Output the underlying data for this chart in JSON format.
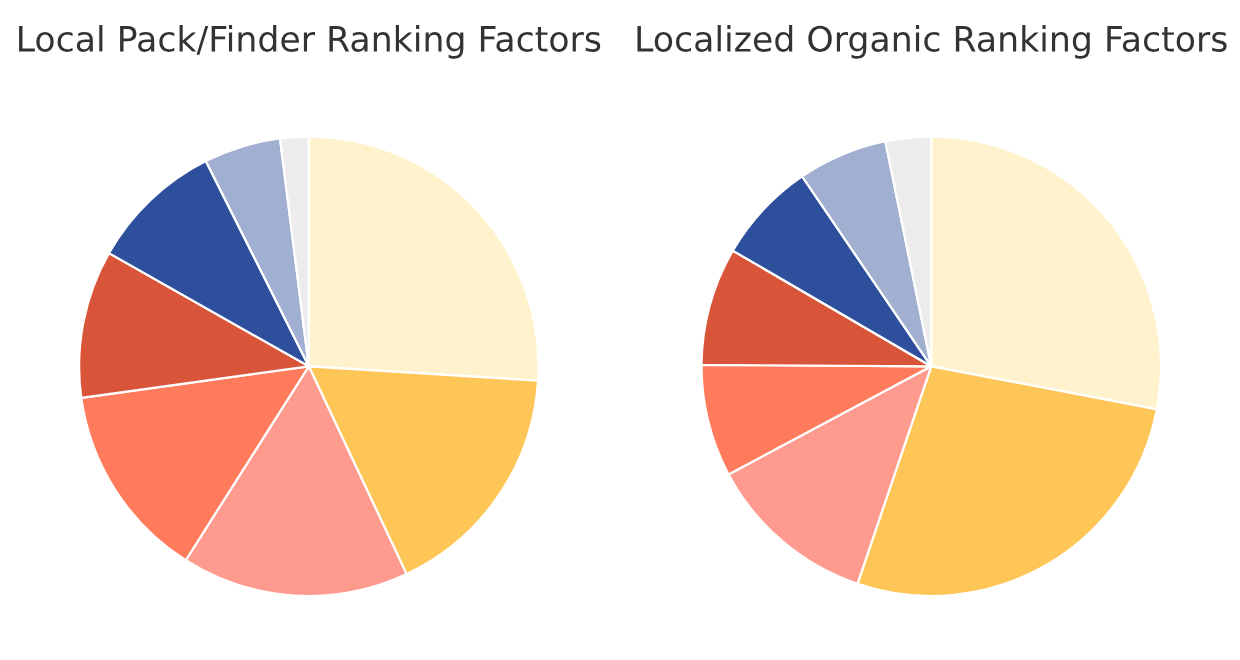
{
  "chart_data": [
    {
      "type": "pie",
      "title": "Local Pack/Finder Ranking Factors",
      "categories": [
        null,
        null,
        null,
        null,
        null,
        null,
        null,
        null
      ],
      "values": [
        26,
        17,
        16,
        13.8,
        10.4,
        9.4,
        5.4,
        2
      ],
      "colors": [
        "#fff2cc",
        "#fdc656",
        "#ff9a8f",
        "#ff7b5c",
        "#d9553a",
        "#2e4f9c",
        "#a1afd0",
        "#ececec"
      ]
    },
    {
      "type": "pie",
      "title": "Localized Organic Ranking Factors",
      "categories": [
        null,
        null,
        null,
        null,
        null,
        null,
        null,
        null
      ],
      "values": [
        28,
        27.2,
        12,
        7.9,
        8.3,
        7.1,
        6.3,
        3.2
      ],
      "colors": [
        "#fff2cc",
        "#fdc656",
        "#ff9a8f",
        "#ff7b5c",
        "#d9553a",
        "#2e4f9c",
        "#a1afd0",
        "#ececec"
      ]
    }
  ]
}
